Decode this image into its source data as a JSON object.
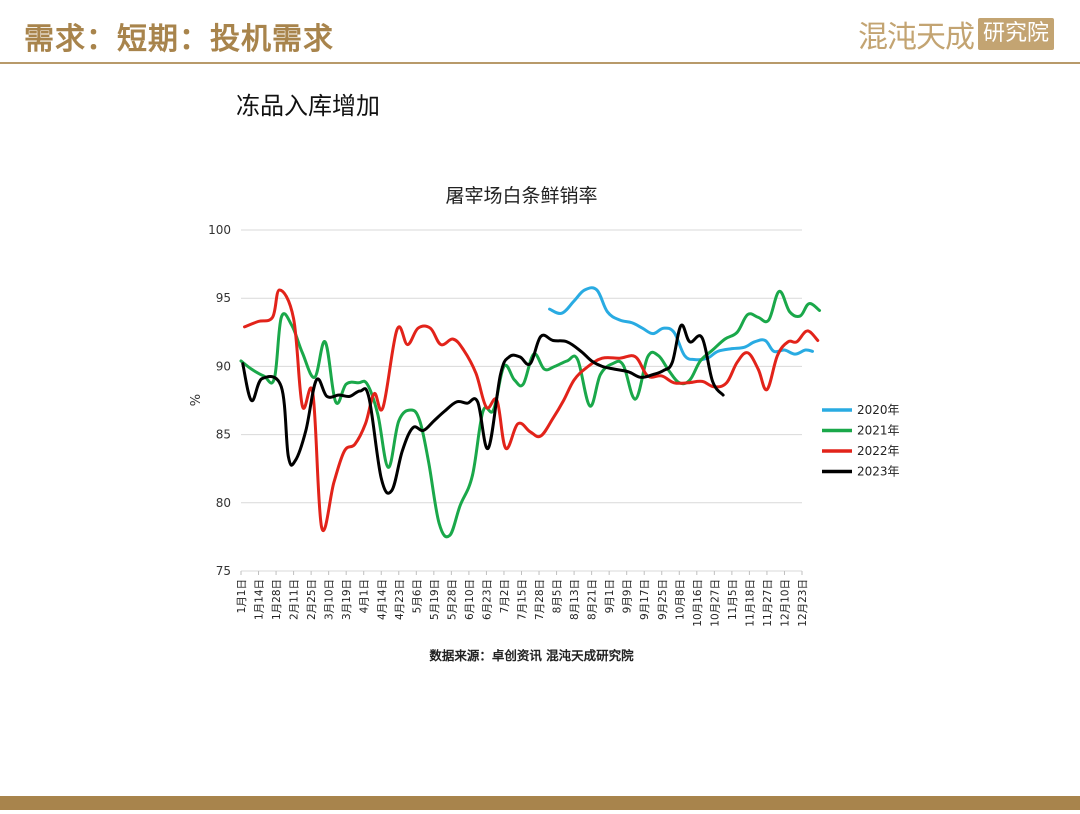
{
  "header": {
    "title": "需求：短期：投机需求",
    "logo_text": "混沌天成",
    "logo_seal": "研究院"
  },
  "subtitle": "冻品入库增加",
  "colors": {
    "brand": "#a8844c",
    "series_2020": "#29abe2",
    "series_2021": "#1aa84a",
    "series_2022": "#e2231a",
    "series_2023": "#000000"
  },
  "chart_data": {
    "type": "line",
    "title": "屠宰场白条鲜销率",
    "ylabel": "%",
    "xlabel": "",
    "source": "数据来源：卓创资讯 混沌天成研究院",
    "ylim": [
      75,
      100
    ],
    "yticks": [
      75,
      80,
      85,
      90,
      95,
      100
    ],
    "grid": true,
    "legend_position": "right",
    "x_tick_labels": [
      "1月1日",
      "1月14日",
      "1月28日",
      "2月11日",
      "2月25日",
      "3月10日",
      "3月19日",
      "4月1日",
      "4月14日",
      "4月23日",
      "5月6日",
      "5月19日",
      "5月28日",
      "6月10日",
      "6月23日",
      "7月2日",
      "7月15日",
      "7月28日",
      "8月5日",
      "8月13日",
      "8月21日",
      "9月1日",
      "9月9日",
      "9月17日",
      "9月25日",
      "10月8日",
      "10月16日",
      "10月27日",
      "11月5日",
      "11月18日",
      "11月27日",
      "12月10日",
      "12月23日"
    ],
    "series": [
      {
        "name": "2020年",
        "color": "#29abe2",
        "points": [
          {
            "x": 17.6,
            "y": 94.2
          },
          {
            "x": 18.3,
            "y": 93.9
          },
          {
            "x": 19.0,
            "y": 94.8
          },
          {
            "x": 19.6,
            "y": 95.6
          },
          {
            "x": 20.3,
            "y": 95.6
          },
          {
            "x": 20.9,
            "y": 94.0
          },
          {
            "x": 21.6,
            "y": 93.4
          },
          {
            "x": 22.3,
            "y": 93.2
          },
          {
            "x": 22.9,
            "y": 92.8
          },
          {
            "x": 23.5,
            "y": 92.4
          },
          {
            "x": 24.1,
            "y": 92.8
          },
          {
            "x": 24.7,
            "y": 92.5
          },
          {
            "x": 25.3,
            "y": 90.8
          },
          {
            "x": 25.9,
            "y": 90.5
          },
          {
            "x": 26.6,
            "y": 90.6
          },
          {
            "x": 27.2,
            "y": 91.1
          },
          {
            "x": 28.0,
            "y": 91.3
          },
          {
            "x": 28.7,
            "y": 91.4
          },
          {
            "x": 29.3,
            "y": 91.8
          },
          {
            "x": 29.9,
            "y": 91.9
          },
          {
            "x": 30.4,
            "y": 91.1
          },
          {
            "x": 31.0,
            "y": 91.2
          },
          {
            "x": 31.6,
            "y": 90.9
          },
          {
            "x": 32.2,
            "y": 91.2
          },
          {
            "x": 32.6,
            "y": 91.1
          }
        ]
      },
      {
        "name": "2021年",
        "color": "#1aa84a",
        "points": [
          {
            "x": 0.0,
            "y": 90.4
          },
          {
            "x": 0.6,
            "y": 89.8
          },
          {
            "x": 1.3,
            "y": 89.3
          },
          {
            "x": 1.9,
            "y": 89.1
          },
          {
            "x": 2.3,
            "y": 93.6
          },
          {
            "x": 2.9,
            "y": 93.0
          },
          {
            "x": 3.5,
            "y": 91.0
          },
          {
            "x": 4.2,
            "y": 89.2
          },
          {
            "x": 4.8,
            "y": 91.8
          },
          {
            "x": 5.4,
            "y": 87.4
          },
          {
            "x": 6.0,
            "y": 88.7
          },
          {
            "x": 6.7,
            "y": 88.8
          },
          {
            "x": 7.2,
            "y": 88.7
          },
          {
            "x": 7.8,
            "y": 86.5
          },
          {
            "x": 8.4,
            "y": 82.6
          },
          {
            "x": 9.0,
            "y": 86.0
          },
          {
            "x": 9.7,
            "y": 86.8
          },
          {
            "x": 10.2,
            "y": 86.0
          },
          {
            "x": 10.7,
            "y": 83.0
          },
          {
            "x": 11.3,
            "y": 78.5
          },
          {
            "x": 11.9,
            "y": 77.6
          },
          {
            "x": 12.5,
            "y": 79.8
          },
          {
            "x": 13.2,
            "y": 82.0
          },
          {
            "x": 13.8,
            "y": 86.7
          },
          {
            "x": 14.4,
            "y": 86.8
          },
          {
            "x": 15.0,
            "y": 90.0
          },
          {
            "x": 15.6,
            "y": 89.0
          },
          {
            "x": 16.1,
            "y": 88.7
          },
          {
            "x": 16.7,
            "y": 90.9
          },
          {
            "x": 17.3,
            "y": 89.8
          },
          {
            "x": 17.9,
            "y": 90.0
          },
          {
            "x": 18.6,
            "y": 90.4
          },
          {
            "x": 19.2,
            "y": 90.5
          },
          {
            "x": 19.9,
            "y": 87.1
          },
          {
            "x": 20.5,
            "y": 89.4
          },
          {
            "x": 21.2,
            "y": 90.2
          },
          {
            "x": 21.8,
            "y": 90.1
          },
          {
            "x": 22.5,
            "y": 87.6
          },
          {
            "x": 23.2,
            "y": 90.7
          },
          {
            "x": 23.8,
            "y": 90.8
          },
          {
            "x": 24.4,
            "y": 89.7
          },
          {
            "x": 25.0,
            "y": 88.8
          },
          {
            "x": 25.6,
            "y": 89.0
          },
          {
            "x": 26.2,
            "y": 90.4
          },
          {
            "x": 26.9,
            "y": 91.2
          },
          {
            "x": 27.6,
            "y": 92.0
          },
          {
            "x": 28.3,
            "y": 92.5
          },
          {
            "x": 28.9,
            "y": 93.8
          },
          {
            "x": 29.5,
            "y": 93.6
          },
          {
            "x": 30.1,
            "y": 93.4
          },
          {
            "x": 30.7,
            "y": 95.5
          },
          {
            "x": 31.3,
            "y": 94.0
          },
          {
            "x": 31.9,
            "y": 93.7
          },
          {
            "x": 32.4,
            "y": 94.6
          },
          {
            "x": 33.0,
            "y": 94.1
          }
        ]
      },
      {
        "name": "2022年",
        "color": "#e2231a",
        "points": [
          {
            "x": 0.2,
            "y": 92.9
          },
          {
            "x": 1.0,
            "y": 93.3
          },
          {
            "x": 1.8,
            "y": 93.6
          },
          {
            "x": 2.2,
            "y": 95.6
          },
          {
            "x": 3.0,
            "y": 93.5
          },
          {
            "x": 3.5,
            "y": 87.1
          },
          {
            "x": 4.1,
            "y": 88.0
          },
          {
            "x": 4.6,
            "y": 78.2
          },
          {
            "x": 5.3,
            "y": 81.5
          },
          {
            "x": 5.9,
            "y": 83.8
          },
          {
            "x": 6.5,
            "y": 84.3
          },
          {
            "x": 7.1,
            "y": 85.8
          },
          {
            "x": 7.6,
            "y": 88.0
          },
          {
            "x": 8.1,
            "y": 87.0
          },
          {
            "x": 8.9,
            "y": 92.7
          },
          {
            "x": 9.5,
            "y": 91.6
          },
          {
            "x": 10.1,
            "y": 92.8
          },
          {
            "x": 10.8,
            "y": 92.8
          },
          {
            "x": 11.4,
            "y": 91.6
          },
          {
            "x": 12.1,
            "y": 92.0
          },
          {
            "x": 12.7,
            "y": 91.2
          },
          {
            "x": 13.4,
            "y": 89.5
          },
          {
            "x": 14.0,
            "y": 87.0
          },
          {
            "x": 14.6,
            "y": 87.5
          },
          {
            "x": 15.1,
            "y": 84.0
          },
          {
            "x": 15.8,
            "y": 85.8
          },
          {
            "x": 16.5,
            "y": 85.2
          },
          {
            "x": 17.1,
            "y": 84.9
          },
          {
            "x": 17.8,
            "y": 86.2
          },
          {
            "x": 18.4,
            "y": 87.5
          },
          {
            "x": 19.0,
            "y": 89.0
          },
          {
            "x": 19.7,
            "y": 89.9
          },
          {
            "x": 20.6,
            "y": 90.6
          },
          {
            "x": 21.6,
            "y": 90.6
          },
          {
            "x": 22.5,
            "y": 90.7
          },
          {
            "x": 23.2,
            "y": 89.3
          },
          {
            "x": 24.0,
            "y": 89.3
          },
          {
            "x": 24.7,
            "y": 88.8
          },
          {
            "x": 25.5,
            "y": 88.8
          },
          {
            "x": 26.3,
            "y": 88.9
          },
          {
            "x": 27.0,
            "y": 88.5
          },
          {
            "x": 27.7,
            "y": 88.8
          },
          {
            "x": 28.3,
            "y": 90.3
          },
          {
            "x": 28.9,
            "y": 91.0
          },
          {
            "x": 29.5,
            "y": 89.8
          },
          {
            "x": 30.0,
            "y": 88.3
          },
          {
            "x": 30.6,
            "y": 90.8
          },
          {
            "x": 31.2,
            "y": 91.8
          },
          {
            "x": 31.7,
            "y": 91.8
          },
          {
            "x": 32.3,
            "y": 92.6
          },
          {
            "x": 32.9,
            "y": 91.9
          }
        ]
      },
      {
        "name": "2023年",
        "color": "#000000",
        "points": [
          {
            "x": 0.1,
            "y": 90.2
          },
          {
            "x": 0.6,
            "y": 87.5
          },
          {
            "x": 1.2,
            "y": 89.1
          },
          {
            "x": 2.3,
            "y": 88.5
          },
          {
            "x": 2.7,
            "y": 83.4
          },
          {
            "x": 3.1,
            "y": 83.1
          },
          {
            "x": 3.7,
            "y": 85.3
          },
          {
            "x": 4.3,
            "y": 89.0
          },
          {
            "x": 4.9,
            "y": 87.8
          },
          {
            "x": 5.6,
            "y": 87.9
          },
          {
            "x": 6.2,
            "y": 87.8
          },
          {
            "x": 6.8,
            "y": 88.2
          },
          {
            "x": 7.3,
            "y": 87.7
          },
          {
            "x": 8.0,
            "y": 81.8
          },
          {
            "x": 8.6,
            "y": 80.9
          },
          {
            "x": 9.2,
            "y": 83.8
          },
          {
            "x": 9.8,
            "y": 85.5
          },
          {
            "x": 10.4,
            "y": 85.3
          },
          {
            "x": 11.0,
            "y": 86.0
          },
          {
            "x": 11.6,
            "y": 86.7
          },
          {
            "x": 12.3,
            "y": 87.4
          },
          {
            "x": 12.9,
            "y": 87.3
          },
          {
            "x": 13.5,
            "y": 87.4
          },
          {
            "x": 14.1,
            "y": 84.0
          },
          {
            "x": 14.8,
            "y": 89.4
          },
          {
            "x": 15.3,
            "y": 90.7
          },
          {
            "x": 15.9,
            "y": 90.7
          },
          {
            "x": 16.5,
            "y": 90.2
          },
          {
            "x": 17.1,
            "y": 92.2
          },
          {
            "x": 17.8,
            "y": 91.9
          },
          {
            "x": 18.6,
            "y": 91.8
          },
          {
            "x": 19.4,
            "y": 91.1
          },
          {
            "x": 20.0,
            "y": 90.4
          },
          {
            "x": 20.6,
            "y": 90.0
          },
          {
            "x": 21.3,
            "y": 89.8
          },
          {
            "x": 22.1,
            "y": 89.6
          },
          {
            "x": 22.8,
            "y": 89.2
          },
          {
            "x": 23.5,
            "y": 89.4
          },
          {
            "x": 24.1,
            "y": 89.7
          },
          {
            "x": 24.6,
            "y": 90.3
          },
          {
            "x": 25.1,
            "y": 93.0
          },
          {
            "x": 25.6,
            "y": 91.8
          },
          {
            "x": 26.3,
            "y": 92.1
          },
          {
            "x": 26.9,
            "y": 88.9
          },
          {
            "x": 27.5,
            "y": 87.9
          }
        ]
      }
    ]
  }
}
